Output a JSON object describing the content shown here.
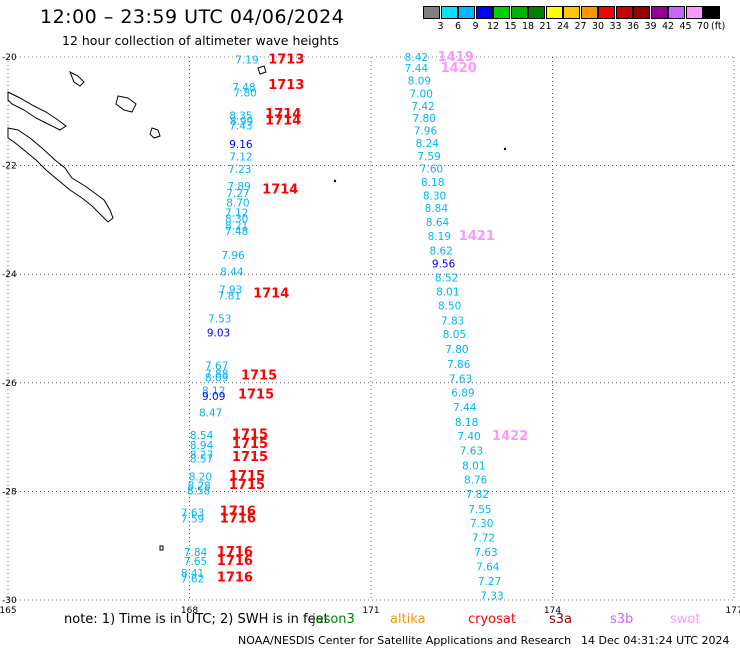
{
  "title": "12:00 – 23:59 UTC 04/06/2024",
  "subtitle": "12 hour collection of altimeter wave heights",
  "color_scale": {
    "labels": [
      "3",
      "6",
      "9",
      "12",
      "15",
      "18",
      "21",
      "24",
      "27",
      "30",
      "33",
      "36",
      "39",
      "42",
      "45",
      "70"
    ],
    "unit": "(ft)",
    "colors": [
      "#808080",
      "#00e5ff",
      "#00b4ff",
      "#0000ff",
      "#00d000",
      "#00b000",
      "#008000",
      "#ffff00",
      "#ffc800",
      "#ff9600",
      "#ff0000",
      "#c80000",
      "#960000",
      "#960096",
      "#c864ff",
      "#ff96ff",
      "#000000"
    ]
  },
  "map": {
    "lat_labels": [
      "-20",
      "-22",
      "-24",
      "-26",
      "-28",
      "-30"
    ],
    "lon_labels": [
      "165",
      "168",
      "171",
      "174",
      "177"
    ],
    "lat_range": [
      -30,
      -20
    ],
    "lon_range": [
      165,
      177
    ]
  },
  "tracks": [
    {
      "mission": "swot",
      "readings": [
        {
          "v": "7.19",
          "lat": -20.05,
          "lon": 168.95,
          "c": "#00b4ff"
        },
        {
          "v": "7.48",
          "lat": -20.55,
          "lon": 168.9,
          "c": "#00b4ff"
        },
        {
          "v": "7.80",
          "lat": -20.65,
          "lon": 168.92,
          "c": "#00b4ff"
        },
        {
          "v": "8.35",
          "lat": -21.08,
          "lon": 168.85,
          "c": "#00b4ff"
        },
        {
          "v": "8.99",
          "lat": -21.18,
          "lon": 168.86,
          "c": "#00b4ff"
        },
        {
          "v": "7.43",
          "lat": -21.26,
          "lon": 168.85,
          "c": "#00b4ff"
        },
        {
          "v": "9.16",
          "lat": -21.6,
          "lon": 168.85,
          "c": "#0000ff"
        },
        {
          "v": "7.12",
          "lat": -21.83,
          "lon": 168.85,
          "c": "#00b4ff"
        },
        {
          "v": "7.23",
          "lat": -22.06,
          "lon": 168.83,
          "c": "#00b4ff"
        },
        {
          "v": "7.89",
          "lat": -22.38,
          "lon": 168.82,
          "c": "#00b4ff"
        },
        {
          "v": "7.27",
          "lat": -22.5,
          "lon": 168.8,
          "c": "#00b4ff"
        },
        {
          "v": "8.70",
          "lat": -22.68,
          "lon": 168.8,
          "c": "#00b4ff"
        },
        {
          "v": "7.12",
          "lat": -22.86,
          "lon": 168.78,
          "c": "#00b4ff"
        },
        {
          "v": "8.30",
          "lat": -22.97,
          "lon": 168.78,
          "c": "#00b4ff"
        },
        {
          "v": "8.21",
          "lat": -23.1,
          "lon": 168.78,
          "c": "#00b4ff"
        },
        {
          "v": "7.48",
          "lat": -23.2,
          "lon": 168.78,
          "c": "#00b4ff"
        },
        {
          "v": "7.96",
          "lat": -23.65,
          "lon": 168.72,
          "c": "#00b4ff"
        },
        {
          "v": "8.44",
          "lat": -23.95,
          "lon": 168.7,
          "c": "#00b4ff"
        },
        {
          "v": "7.93",
          "lat": -24.28,
          "lon": 168.68,
          "c": "#00b4ff"
        },
        {
          "v": "7.81",
          "lat": -24.39,
          "lon": 168.66,
          "c": "#00b4ff"
        },
        {
          "v": "7.53",
          "lat": -24.82,
          "lon": 168.5,
          "c": "#00b4ff"
        },
        {
          "v": "9.03",
          "lat": -25.07,
          "lon": 168.48,
          "c": "#0000ff"
        },
        {
          "v": "7.67",
          "lat": -25.68,
          "lon": 168.45,
          "c": "#00b4ff"
        },
        {
          "v": "7.88",
          "lat": -25.83,
          "lon": 168.45,
          "c": "#00b4ff"
        },
        {
          "v": "8.09",
          "lat": -25.9,
          "lon": 168.45,
          "c": "#00b4ff"
        },
        {
          "v": "8.12",
          "lat": -26.14,
          "lon": 168.4,
          "c": "#00b4ff"
        },
        {
          "v": "9.09",
          "lat": -26.24,
          "lon": 168.4,
          "c": "#0000ff"
        },
        {
          "v": "8.47",
          "lat": -26.55,
          "lon": 168.35,
          "c": "#00b4ff"
        },
        {
          "v": "8.54",
          "lat": -26.96,
          "lon": 168.2,
          "c": "#00b4ff"
        },
        {
          "v": "8.94",
          "lat": -27.15,
          "lon": 168.2,
          "c": "#00b4ff"
        },
        {
          "v": "8.27",
          "lat": -27.32,
          "lon": 168.2,
          "c": "#00b4ff"
        },
        {
          "v": "8.57",
          "lat": -27.39,
          "lon": 168.2,
          "c": "#00b4ff"
        },
        {
          "v": "8.20",
          "lat": -27.73,
          "lon": 168.18,
          "c": "#00b4ff"
        },
        {
          "v": "8.28",
          "lat": -27.89,
          "lon": 168.16,
          "c": "#00b4ff"
        },
        {
          "v": "8.58",
          "lat": -27.98,
          "lon": 168.15,
          "c": "#00b4ff"
        },
        {
          "v": "7.63",
          "lat": -28.39,
          "lon": 168.05,
          "c": "#00b4ff"
        },
        {
          "v": "7.59",
          "lat": -28.5,
          "lon": 168.05,
          "c": "#00b4ff"
        },
        {
          "v": "7.84",
          "lat": -29.12,
          "lon": 168.1,
          "c": "#00b4ff"
        },
        {
          "v": "7.65",
          "lat": -29.28,
          "lon": 168.1,
          "c": "#00b4ff"
        },
        {
          "v": "8.41",
          "lat": -29.5,
          "lon": 168.05,
          "c": "#00b4ff"
        },
        {
          "v": "7.62",
          "lat": -29.6,
          "lon": 168.05,
          "c": "#00b4ff"
        }
      ]
    },
    {
      "mission": "s3b",
      "readings": [
        {
          "v": "8.42",
          "lat": -20.0,
          "lon": 171.75,
          "c": "#00b4ff"
        },
        {
          "v": "7.44",
          "lat": -20.2,
          "lon": 171.75,
          "c": "#00b4ff"
        },
        {
          "v": "8.09",
          "lat": -20.43,
          "lon": 171.8,
          "c": "#00b4ff"
        },
        {
          "v": "7.00",
          "lat": -20.67,
          "lon": 171.83,
          "c": "#00b4ff"
        },
        {
          "v": "7.42",
          "lat": -20.9,
          "lon": 171.86,
          "c": "#00b4ff"
        },
        {
          "v": "7.80",
          "lat": -21.12,
          "lon": 171.88,
          "c": "#00b4ff"
        },
        {
          "v": "7.96",
          "lat": -21.35,
          "lon": 171.9,
          "c": "#00b4ff"
        },
        {
          "v": "8.24",
          "lat": -21.58,
          "lon": 171.93,
          "c": "#00b4ff"
        },
        {
          "v": "7.59",
          "lat": -21.82,
          "lon": 171.96,
          "c": "#00b4ff"
        },
        {
          "v": "7.60",
          "lat": -22.05,
          "lon": 172.0,
          "c": "#00b4ff"
        },
        {
          "v": "8.18",
          "lat": -22.3,
          "lon": 172.02,
          "c": "#00b4ff"
        },
        {
          "v": "8.30",
          "lat": -22.55,
          "lon": 172.05,
          "c": "#00b4ff"
        },
        {
          "v": "8.84",
          "lat": -22.78,
          "lon": 172.08,
          "c": "#00b4ff"
        },
        {
          "v": "8.64",
          "lat": -23.04,
          "lon": 172.1,
          "c": "#00b4ff"
        },
        {
          "v": "8.19",
          "lat": -23.3,
          "lon": 172.13,
          "c": "#00b4ff"
        },
        {
          "v": "8.62",
          "lat": -23.56,
          "lon": 172.16,
          "c": "#00b4ff"
        },
        {
          "v": "9.56",
          "lat": -23.8,
          "lon": 172.2,
          "c": "#0000ff"
        },
        {
          "v": "8.52",
          "lat": -24.06,
          "lon": 172.25,
          "c": "#00b4ff"
        },
        {
          "v": "8.01",
          "lat": -24.32,
          "lon": 172.27,
          "c": "#00b4ff"
        },
        {
          "v": "8.50",
          "lat": -24.58,
          "lon": 172.3,
          "c": "#00b4ff"
        },
        {
          "v": "7.83",
          "lat": -24.85,
          "lon": 172.35,
          "c": "#00b4ff"
        },
        {
          "v": "8.05",
          "lat": -25.1,
          "lon": 172.38,
          "c": "#00b4ff"
        },
        {
          "v": "7.80",
          "lat": -25.38,
          "lon": 172.42,
          "c": "#00b4ff"
        },
        {
          "v": "7.86",
          "lat": -25.65,
          "lon": 172.45,
          "c": "#00b4ff"
        },
        {
          "v": "7.63",
          "lat": -25.92,
          "lon": 172.48,
          "c": "#00b4ff"
        },
        {
          "v": "6.89",
          "lat": -26.18,
          "lon": 172.52,
          "c": "#00b4ff"
        },
        {
          "v": "7.44",
          "lat": -26.45,
          "lon": 172.55,
          "c": "#00b4ff"
        },
        {
          "v": "8.18",
          "lat": -26.72,
          "lon": 172.58,
          "c": "#00b4ff"
        },
        {
          "v": "7.40",
          "lat": -26.98,
          "lon": 172.62,
          "c": "#00b4ff"
        },
        {
          "v": "7.63",
          "lat": -27.25,
          "lon": 172.66,
          "c": "#00b4ff"
        },
        {
          "v": "8.01",
          "lat": -27.52,
          "lon": 172.7,
          "c": "#00b4ff"
        },
        {
          "v": "8.76",
          "lat": -27.78,
          "lon": 172.73,
          "c": "#00b4ff"
        },
        {
          "v": "7.82",
          "lat": -28.05,
          "lon": 172.76,
          "c": "#00b4ff"
        },
        {
          "v": "7.55",
          "lat": -28.32,
          "lon": 172.8,
          "c": "#00b4ff"
        },
        {
          "v": "7.30",
          "lat": -28.58,
          "lon": 172.83,
          "c": "#00b4ff"
        },
        {
          "v": "7.72",
          "lat": -28.85,
          "lon": 172.86,
          "c": "#00b4ff"
        },
        {
          "v": "7.63",
          "lat": -29.12,
          "lon": 172.9,
          "c": "#00b4ff"
        },
        {
          "v": "7.64",
          "lat": -29.38,
          "lon": 172.93,
          "c": "#00b4ff"
        },
        {
          "v": "7.27",
          "lat": -29.65,
          "lon": 172.96,
          "c": "#00b4ff"
        },
        {
          "v": "7.33",
          "lat": -29.92,
          "lon": 173.0,
          "c": "#00b4ff"
        }
      ]
    }
  ],
  "time_labels": [
    {
      "t": "1713",
      "lat": -20.03,
      "lon": 169.6,
      "c": "#ff0000"
    },
    {
      "t": "1713",
      "lat": -20.5,
      "lon": 169.6,
      "c": "#ff0000"
    },
    {
      "t": "1714",
      "lat": -21.03,
      "lon": 169.55,
      "c": "#ff0000"
    },
    {
      "t": "1714",
      "lat": -21.15,
      "lon": 169.55,
      "c": "#ff0000"
    },
    {
      "t": "1714",
      "lat": -22.42,
      "lon": 169.5,
      "c": "#ff0000"
    },
    {
      "t": "1714",
      "lat": -24.34,
      "lon": 169.35,
      "c": "#ff0000"
    },
    {
      "t": "1715",
      "lat": -25.85,
      "lon": 169.15,
      "c": "#ff0000"
    },
    {
      "t": "1715",
      "lat": -26.2,
      "lon": 169.1,
      "c": "#ff0000"
    },
    {
      "t": "1715",
      "lat": -26.93,
      "lon": 169.0,
      "c": "#ff0000"
    },
    {
      "t": "1715",
      "lat": -27.11,
      "lon": 169.0,
      "c": "#ff0000"
    },
    {
      "t": "1715",
      "lat": -27.35,
      "lon": 169.0,
      "c": "#ff0000"
    },
    {
      "t": "1715",
      "lat": -27.7,
      "lon": 168.95,
      "c": "#ff0000"
    },
    {
      "t": "1715",
      "lat": -27.86,
      "lon": 168.95,
      "c": "#ff0000"
    },
    {
      "t": "1716",
      "lat": -28.35,
      "lon": 168.8,
      "c": "#ff0000"
    },
    {
      "t": "1716",
      "lat": -28.48,
      "lon": 168.8,
      "c": "#ff0000"
    },
    {
      "t": "1716",
      "lat": -29.1,
      "lon": 168.75,
      "c": "#ff0000"
    },
    {
      "t": "1716",
      "lat": -29.26,
      "lon": 168.75,
      "c": "#ff0000"
    },
    {
      "t": "1716",
      "lat": -29.57,
      "lon": 168.75,
      "c": "#ff0000"
    },
    {
      "t": "1419",
      "lat": -19.98,
      "lon": 172.4,
      "c": "#ff96ff"
    },
    {
      "t": "1420",
      "lat": -20.18,
      "lon": 172.45,
      "c": "#ff96ff"
    },
    {
      "t": "1421",
      "lat": -23.28,
      "lon": 172.75,
      "c": "#ff96ff"
    },
    {
      "t": "1422",
      "lat": -26.96,
      "lon": 173.3,
      "c": "#ff96ff"
    }
  ],
  "note": "note:  1) Time is in UTC; 2) SWH is in feet",
  "missions": [
    {
      "name": "jason3",
      "color": "#008000"
    },
    {
      "name": "altika",
      "color": "#ff9600"
    },
    {
      "name": "cryosat",
      "color": "#ff0000"
    },
    {
      "name": "s3a",
      "color": "#960000"
    },
    {
      "name": "s3b",
      "color": "#c864ff"
    },
    {
      "name": "swot",
      "color": "#ff96ff"
    }
  ],
  "footer": {
    "center": "NOAA/NESDIS Center for Satellite Applications and Research",
    "stamp": "14 Dec 04:31:24 UTC 2024"
  }
}
